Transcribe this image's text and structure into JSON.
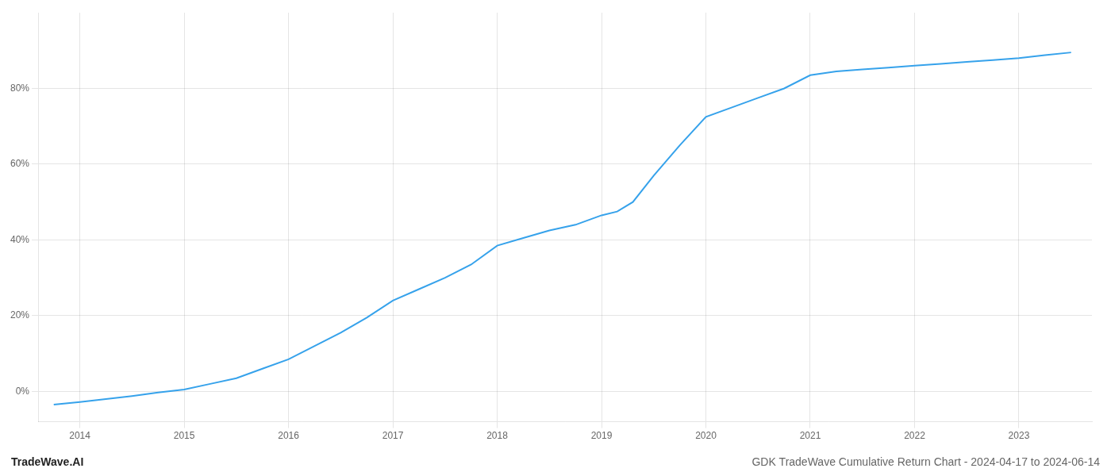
{
  "chart_data": {
    "type": "line",
    "title": "GDK TradeWave Cumulative Return Chart - 2024-04-17 to 2024-06-14",
    "annotations": [
      "TradeWave.AI"
    ],
    "x": [
      2013.75,
      2014.0,
      2014.25,
      2014.5,
      2014.75,
      2015.0,
      2015.25,
      2015.5,
      2015.75,
      2016.0,
      2016.25,
      2016.5,
      2016.75,
      2017.0,
      2017.25,
      2017.5,
      2017.75,
      2018.0,
      2018.25,
      2018.5,
      2018.75,
      2019.0,
      2019.15,
      2019.3,
      2019.5,
      2019.75,
      2020.0,
      2020.25,
      2020.5,
      2020.75,
      2021.0,
      2021.25,
      2021.5,
      2021.75,
      2022.0,
      2022.25,
      2022.5,
      2022.75,
      2023.0,
      2023.25,
      2023.5
    ],
    "values": [
      -3.5,
      -2.8,
      -2.0,
      -1.2,
      -0.3,
      0.5,
      2.0,
      3.5,
      6.0,
      8.5,
      12.0,
      15.5,
      19.5,
      24.0,
      27.0,
      30.0,
      33.5,
      38.5,
      40.5,
      42.5,
      44.0,
      46.5,
      47.5,
      50.0,
      57.0,
      65.0,
      72.5,
      75.0,
      77.5,
      80.0,
      83.5,
      84.5,
      85.0,
      85.5,
      86.0,
      86.5,
      87.0,
      87.5,
      88.0,
      88.8,
      89.5
    ],
    "xlim": [
      2013.6,
      2023.7
    ],
    "xticks": [
      2014,
      2015,
      2016,
      2017,
      2018,
      2019,
      2020,
      2021,
      2022,
      2023
    ],
    "ylim": [
      -8,
      100
    ],
    "yticks": [
      {
        "value": 0,
        "label": "0%"
      },
      {
        "value": 20,
        "label": "20%"
      },
      {
        "value": 40,
        "label": "40%"
      },
      {
        "value": 60,
        "label": "60%"
      },
      {
        "value": 80,
        "label": "80%"
      }
    ],
    "grid": true
  }
}
